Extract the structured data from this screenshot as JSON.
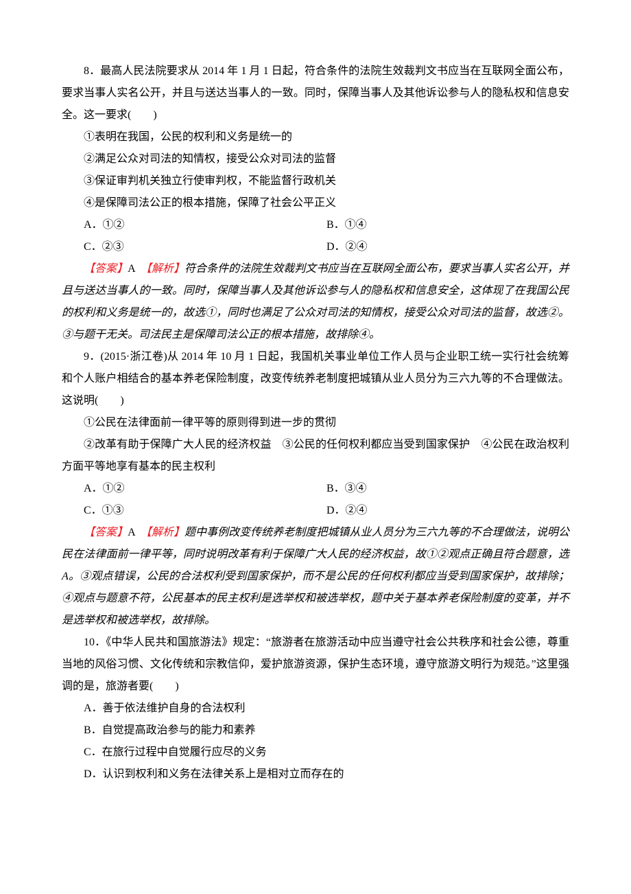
{
  "colors": {
    "text": "#000000",
    "accent": "#ed1c24",
    "background": "#ffffff"
  },
  "typography": {
    "font_family": "SimSun",
    "font_size_pt": 12,
    "line_height": 2.0,
    "italic_analysis": true
  },
  "q8": {
    "stem": "8．最高人民法院要求从 2014 年 1 月 1 日起，符合条件的法院生效裁判文书应当在互联网全面公布，要求当事人实名公开，并且与送达当事人的一致。同时，保障当事人及其他诉讼参与人的隐私权和信息安全。这一要求(　　)",
    "s1": "①表明在我国，公民的权利和义务是统一的",
    "s2": "②满足公众对司法的知情权，接受公众对司法的监督",
    "s3": "③保证审判机关独立行使审判权，不能监督行政机关",
    "s4": "④是保障司法公正的根本措施，保障了社会公平正义",
    "optA": "A．①②",
    "optB": "B．①④",
    "optC": "C．②③",
    "optD": "D．②④",
    "ans_label": "【答案】",
    "ans_letter": "A　",
    "ana_label": "【解析】",
    "analysis": "符合条件的法院生效裁判文书应当在互联网全面公布，要求当事人实名公开，并且与送达当事人的一致。同时，保障当事人及其他诉讼参与人的隐私权和信息安全，这体现了在我国公民的权利和义务是统一的，故选①，同时也满足了公众对司法的知情权，接受公众对司法的监督，故选②。③与题干无关。司法民主是保障司法公正的根本措施，故排除④。"
  },
  "q9": {
    "stem": "9．(2015·浙江卷)从 2014 年 10 月 1 日起，我国机关事业单位工作人员与企业职工统一实行社会统筹和个人账户相结合的基本养老保险制度，改变传统养老制度把城镇从业人员分为三六九等的不合理做法。这说明(　　)",
    "s1": "①公民在法律面前一律平等的原则得到进一步的贯彻",
    "s2": "②改革有助于保障广大人民的经济权益　③公民的任何权利都应当受到国家保护　④公民在政治权利方面平等地享有基本的民主权利",
    "optA": "A．①②",
    "optB": "B．③④",
    "optC": "C．①③",
    "optD": "D．②④",
    "ans_label": "【答案】",
    "ans_letter": "A　",
    "ana_label": "【解析】",
    "analysis": "题中事例改变传统养老制度把城镇从业人员分为三六九等的不合理做法，说明公民在法律面前一律平等，同时说明改革有利于保障广大人民的经济权益，故①②观点正确且符合题意，选 A。③观点错误，公民的合法权利受到国家保护，而不是公民的任何权利都应当受到国家保护，故排除；④观点与题意不符，公民基本的民主权利是选举权和被选举权，题中关于基本养老保险制度的变革，并不是选举权和被选举权，故排除。"
  },
  "q10": {
    "stem": "10．《中华人民共和国旅游法》规定：“旅游者在旅游活动中应当遵守社会公共秩序和社会公德，尊重当地的风俗习惯、文化传统和宗教信仰，爱护旅游资源，保护生态环境，遵守旅游文明行为规范。”这里强调的是，旅游者要(　　)",
    "optA": "A．善于依法维护自身的合法权利",
    "optB": "B．自觉提高政治参与的能力和素养",
    "optC": "C．在旅行过程中自觉履行应尽的义务",
    "optD": "D．认识到权利和义务在法律关系上是相对立而存在的"
  }
}
